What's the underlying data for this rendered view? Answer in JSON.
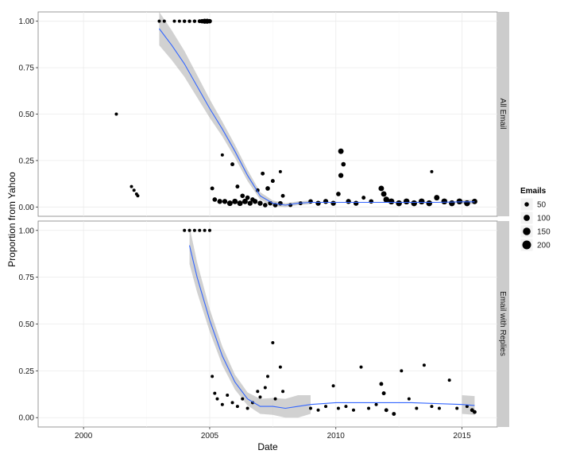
{
  "chart_data": {
    "type": "scatter",
    "xlabel": "Date",
    "ylabel": "Proportion from Yahoo",
    "xlim": [
      1998.2,
      2016.4
    ],
    "ylim": [
      -0.05,
      1.05
    ],
    "x_ticks": [
      2000,
      2005,
      2010,
      2015
    ],
    "y_ticks": [
      "0.00",
      "0.25",
      "0.50",
      "0.75",
      "1.00"
    ],
    "grid": true,
    "legend": {
      "title": "Emails",
      "placement": "right",
      "entries": [
        "50",
        "100",
        "150",
        "200"
      ],
      "entry_values": [
        50,
        100,
        150,
        200
      ]
    },
    "smooth_color": "#3366ff",
    "point_color": "#000000",
    "band_color": "#999999",
    "panels": [
      {
        "name": "All Email",
        "smooth": [
          [
            2003.0,
            0.96
          ],
          [
            2003.5,
            0.87
          ],
          [
            2004.0,
            0.77
          ],
          [
            2004.5,
            0.65
          ],
          [
            2005.0,
            0.53
          ],
          [
            2005.5,
            0.42
          ],
          [
            2006.0,
            0.3
          ],
          [
            2006.5,
            0.17
          ],
          [
            2007.0,
            0.06
          ],
          [
            2007.5,
            0.02
          ],
          [
            2008.0,
            0.01
          ],
          [
            2008.5,
            0.02
          ],
          [
            2009.0,
            0.025
          ],
          [
            2010.0,
            0.025
          ],
          [
            2011.0,
            0.025
          ],
          [
            2012.0,
            0.025
          ],
          [
            2013.0,
            0.025
          ],
          [
            2014.0,
            0.025
          ],
          [
            2015.0,
            0.028
          ],
          [
            2015.5,
            0.028
          ]
        ],
        "band_hw": [
          0.09,
          0.08,
          0.07,
          0.06,
          0.05,
          0.04,
          0.035,
          0.03,
          0.02,
          0.015,
          0.01,
          0.01,
          0.01,
          0.008,
          0.008,
          0.008,
          0.008,
          0.008,
          0.01,
          0.012
        ],
        "points": [
          [
            2001.3,
            0.5,
            4
          ],
          [
            2001.9,
            0.11,
            4
          ],
          [
            2002.0,
            0.09,
            4
          ],
          [
            2002.1,
            0.07,
            4
          ],
          [
            2002.15,
            0.06,
            4
          ],
          [
            2003.0,
            1.0,
            4
          ],
          [
            2003.2,
            1.0,
            4
          ],
          [
            2003.6,
            1.0,
            4
          ],
          [
            2003.8,
            1.0,
            4
          ],
          [
            2004.0,
            1.0,
            5
          ],
          [
            2004.2,
            1.0,
            5
          ],
          [
            2004.4,
            1.0,
            5
          ],
          [
            2004.6,
            1.0,
            6
          ],
          [
            2004.7,
            1.0,
            8
          ],
          [
            2004.8,
            1.0,
            10
          ],
          [
            2004.9,
            1.0,
            10
          ],
          [
            2005.0,
            1.0,
            8
          ],
          [
            2005.5,
            0.28,
            4
          ],
          [
            2005.9,
            0.23,
            6
          ],
          [
            2006.1,
            0.11,
            6
          ],
          [
            2006.3,
            0.06,
            8
          ],
          [
            2006.5,
            0.05,
            8
          ],
          [
            2006.7,
            0.04,
            8
          ],
          [
            2006.9,
            0.09,
            6
          ],
          [
            2007.1,
            0.18,
            6
          ],
          [
            2007.3,
            0.1,
            8
          ],
          [
            2007.5,
            0.14,
            6
          ],
          [
            2007.8,
            0.19,
            4
          ],
          [
            2007.9,
            0.06,
            6
          ],
          [
            2005.1,
            0.1,
            6
          ],
          [
            2005.2,
            0.04,
            8
          ],
          [
            2005.4,
            0.03,
            10
          ],
          [
            2005.6,
            0.03,
            10
          ],
          [
            2005.8,
            0.02,
            12
          ],
          [
            2006.0,
            0.03,
            12
          ],
          [
            2006.2,
            0.02,
            12
          ],
          [
            2006.4,
            0.03,
            12
          ],
          [
            2006.6,
            0.02,
            10
          ],
          [
            2006.8,
            0.03,
            10
          ],
          [
            2007.0,
            0.02,
            10
          ],
          [
            2007.2,
            0.01,
            8
          ],
          [
            2007.4,
            0.02,
            8
          ],
          [
            2007.6,
            0.01,
            8
          ],
          [
            2007.8,
            0.02,
            8
          ],
          [
            2008.2,
            0.01,
            6
          ],
          [
            2008.6,
            0.02,
            6
          ],
          [
            2009.0,
            0.03,
            8
          ],
          [
            2009.3,
            0.02,
            10
          ],
          [
            2009.6,
            0.03,
            10
          ],
          [
            2009.9,
            0.02,
            10
          ],
          [
            2010.1,
            0.07,
            8
          ],
          [
            2010.2,
            0.3,
            12
          ],
          [
            2010.3,
            0.23,
            8
          ],
          [
            2010.2,
            0.17,
            10
          ],
          [
            2010.5,
            0.03,
            10
          ],
          [
            2010.8,
            0.02,
            10
          ],
          [
            2011.1,
            0.05,
            6
          ],
          [
            2011.4,
            0.03,
            8
          ],
          [
            2011.8,
            0.1,
            12
          ],
          [
            2011.9,
            0.07,
            12
          ],
          [
            2012.0,
            0.04,
            14
          ],
          [
            2012.2,
            0.03,
            14
          ],
          [
            2012.5,
            0.02,
            14
          ],
          [
            2012.8,
            0.03,
            14
          ],
          [
            2013.1,
            0.02,
            14
          ],
          [
            2013.4,
            0.03,
            14
          ],
          [
            2013.7,
            0.02,
            14
          ],
          [
            2013.8,
            0.19,
            4
          ],
          [
            2014.0,
            0.05,
            12
          ],
          [
            2014.3,
            0.03,
            14
          ],
          [
            2014.6,
            0.02,
            14
          ],
          [
            2014.9,
            0.03,
            14
          ],
          [
            2015.2,
            0.02,
            14
          ],
          [
            2015.5,
            0.03,
            12
          ]
        ]
      },
      {
        "name": "Email with Replies",
        "smooth": [
          [
            2004.2,
            0.92
          ],
          [
            2004.5,
            0.75
          ],
          [
            2005.0,
            0.52
          ],
          [
            2005.5,
            0.33
          ],
          [
            2006.0,
            0.19
          ],
          [
            2006.5,
            0.1
          ],
          [
            2007.0,
            0.06
          ],
          [
            2007.5,
            0.06
          ],
          [
            2008.0,
            0.05
          ],
          [
            2008.5,
            0.06
          ],
          [
            2009.0,
            0.07
          ],
          [
            2010.0,
            0.08
          ],
          [
            2011.0,
            0.08
          ],
          [
            2012.0,
            0.08
          ],
          [
            2013.0,
            0.08
          ],
          [
            2014.0,
            0.075
          ],
          [
            2015.0,
            0.07
          ],
          [
            2015.5,
            0.065
          ]
        ],
        "band_hw": [
          0.1,
          0.08,
          0.06,
          0.05,
          0.04,
          0.035,
          0.04,
          0.045,
          0.05,
          0.06,
          0.05,
          0.05,
          0.05,
          0.05,
          0.05,
          0.05,
          0.05,
          0.05
        ],
        "points": [
          [
            2004.0,
            1.0,
            4
          ],
          [
            2004.2,
            1.0,
            4
          ],
          [
            2004.4,
            1.0,
            4
          ],
          [
            2004.6,
            1.0,
            4
          ],
          [
            2004.8,
            1.0,
            4
          ],
          [
            2005.0,
            1.0,
            4
          ],
          [
            2005.1,
            0.22,
            4
          ],
          [
            2005.2,
            0.13,
            4
          ],
          [
            2005.3,
            0.1,
            4
          ],
          [
            2005.5,
            0.07,
            4
          ],
          [
            2005.7,
            0.12,
            4
          ],
          [
            2005.9,
            0.08,
            4
          ],
          [
            2006.1,
            0.06,
            4
          ],
          [
            2006.3,
            0.1,
            4
          ],
          [
            2006.5,
            0.05,
            4
          ],
          [
            2006.7,
            0.08,
            4
          ],
          [
            2006.9,
            0.14,
            4
          ],
          [
            2007.0,
            0.11,
            4
          ],
          [
            2007.2,
            0.16,
            4
          ],
          [
            2007.3,
            0.22,
            4
          ],
          [
            2007.5,
            0.4,
            4
          ],
          [
            2007.6,
            0.1,
            4
          ],
          [
            2007.8,
            0.27,
            4
          ],
          [
            2007.9,
            0.14,
            4
          ],
          [
            2009.0,
            0.05,
            4
          ],
          [
            2009.3,
            0.04,
            4
          ],
          [
            2009.6,
            0.06,
            4
          ],
          [
            2009.9,
            0.17,
            4
          ],
          [
            2010.1,
            0.05,
            4
          ],
          [
            2010.4,
            0.06,
            4
          ],
          [
            2010.7,
            0.04,
            4
          ],
          [
            2011.0,
            0.27,
            4
          ],
          [
            2011.3,
            0.05,
            4
          ],
          [
            2011.6,
            0.07,
            4
          ],
          [
            2011.8,
            0.18,
            6
          ],
          [
            2011.9,
            0.13,
            6
          ],
          [
            2012.0,
            0.04,
            6
          ],
          [
            2012.3,
            0.02,
            6
          ],
          [
            2012.6,
            0.25,
            4
          ],
          [
            2012.9,
            0.1,
            4
          ],
          [
            2013.2,
            0.05,
            4
          ],
          [
            2013.5,
            0.28,
            4
          ],
          [
            2013.8,
            0.06,
            4
          ],
          [
            2014.1,
            0.05,
            4
          ],
          [
            2014.5,
            0.2,
            4
          ],
          [
            2014.8,
            0.05,
            4
          ],
          [
            2015.2,
            0.06,
            4
          ],
          [
            2015.4,
            0.04,
            6
          ],
          [
            2015.5,
            0.03,
            6
          ]
        ]
      }
    ]
  }
}
